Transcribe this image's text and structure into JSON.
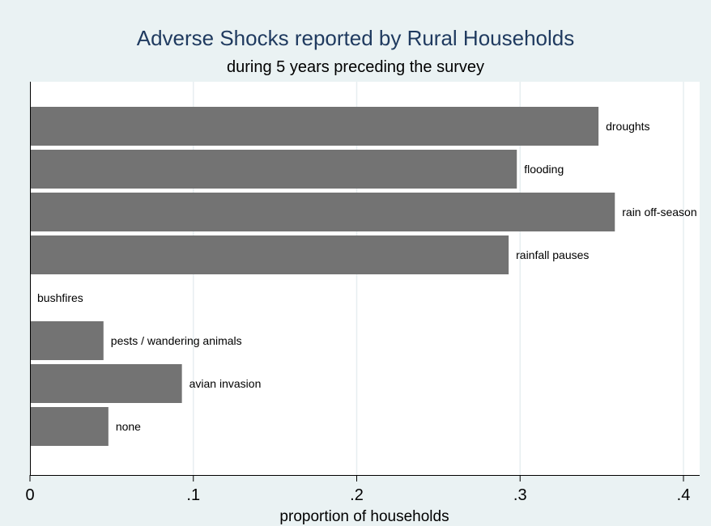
{
  "chart_data": {
    "type": "bar",
    "orientation": "horizontal",
    "title": "Adverse Shocks reported by Rural Households",
    "subtitle": "during 5 years preceding the survey",
    "xlabel": "proportion of households",
    "ylabel": "",
    "xlim": [
      0,
      0.4
    ],
    "xticks": [
      0,
      0.1,
      0.2,
      0.3,
      0.4
    ],
    "xtick_labels": [
      "0",
      ".1",
      ".2",
      ".3",
      ".4"
    ],
    "grid": true,
    "legend": false,
    "categories": [
      "droughts",
      "flooding",
      "rain off-season",
      "rainfall pauses",
      "bushfires",
      "pests / wandering animals",
      "avian invasion",
      "none"
    ],
    "values": [
      0.348,
      0.298,
      0.358,
      0.293,
      0.0,
      0.045,
      0.093,
      0.048
    ],
    "colors": {
      "background": "#eaf2f3",
      "plot_background": "#ffffff",
      "bar": "#737373",
      "title": "#1f3a5f",
      "grid": "#e7eef0"
    }
  }
}
